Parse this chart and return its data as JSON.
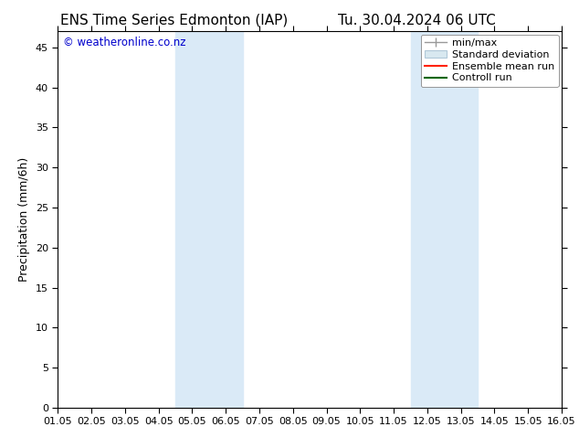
{
  "title_left": "ENS Time Series Edmonton (IAP)",
  "title_right": "Tu. 30.04.2024 06 UTC",
  "ylabel": "Precipitation (mm/6h)",
  "ylim": [
    0,
    47
  ],
  "yticks": [
    0,
    5,
    10,
    15,
    20,
    25,
    30,
    35,
    40,
    45
  ],
  "xtick_labels": [
    "01.05",
    "02.05",
    "03.05",
    "04.05",
    "05.05",
    "06.05",
    "07.05",
    "08.05",
    "09.05",
    "10.05",
    "11.05",
    "12.05",
    "13.05",
    "14.05",
    "15.05",
    "16.05"
  ],
  "xlim": [
    0,
    15
  ],
  "shaded_bands": [
    {
      "xmin": 3.5,
      "xmax": 5.5,
      "color": "#daeaf7"
    },
    {
      "xmin": 10.5,
      "xmax": 12.5,
      "color": "#daeaf7"
    }
  ],
  "bg_color": "#ffffff",
  "plot_bg_color": "#ffffff",
  "watermark": "© weatheronline.co.nz",
  "watermark_color": "#0000cc",
  "tick_color": "#000000",
  "border_color": "#000000",
  "title_fontsize": 11,
  "axis_label_fontsize": 9,
  "tick_fontsize": 8,
  "legend_fontsize": 8
}
